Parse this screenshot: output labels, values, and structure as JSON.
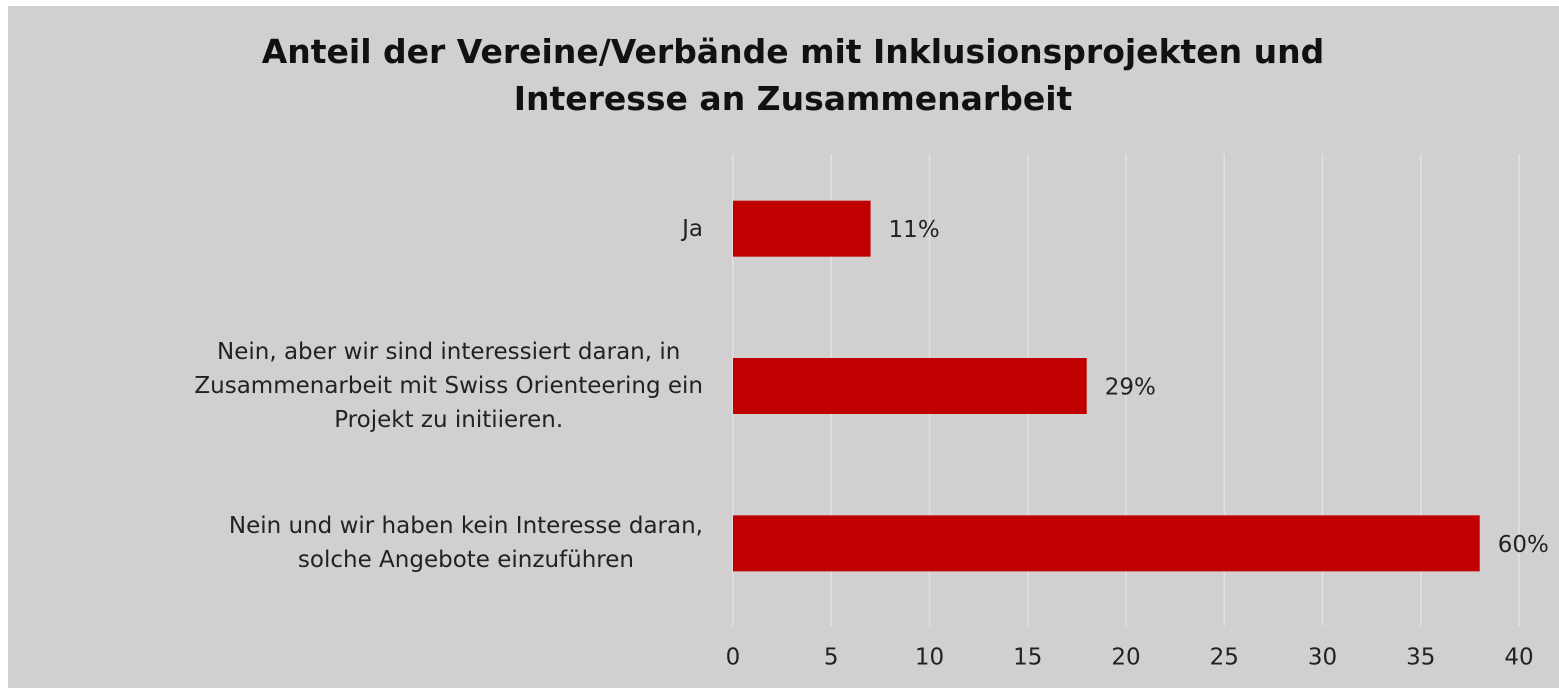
{
  "chart_data": {
    "type": "hbar",
    "title": "Anteil der Vereine/Verbände mit Inklusionsprojekten und\nInteresse an Zusammenarbeit",
    "categories": [
      "Ja",
      "Nein, aber wir sind interessiert daran, in\nZusammenarbeit mit Swiss Orienteering ein\nProjekt zu initiieren.",
      "Nein und wir haben kein Interesse daran,\nsolche Angebote einzuführen"
    ],
    "values": [
      7,
      18,
      38
    ],
    "percent_labels": [
      "11%",
      "29%",
      "60%"
    ],
    "color": "#c00000",
    "xlim": [
      0,
      40
    ],
    "xticks": [
      0,
      5,
      10,
      15,
      20,
      25,
      30,
      35,
      40
    ],
    "grid": true
  }
}
